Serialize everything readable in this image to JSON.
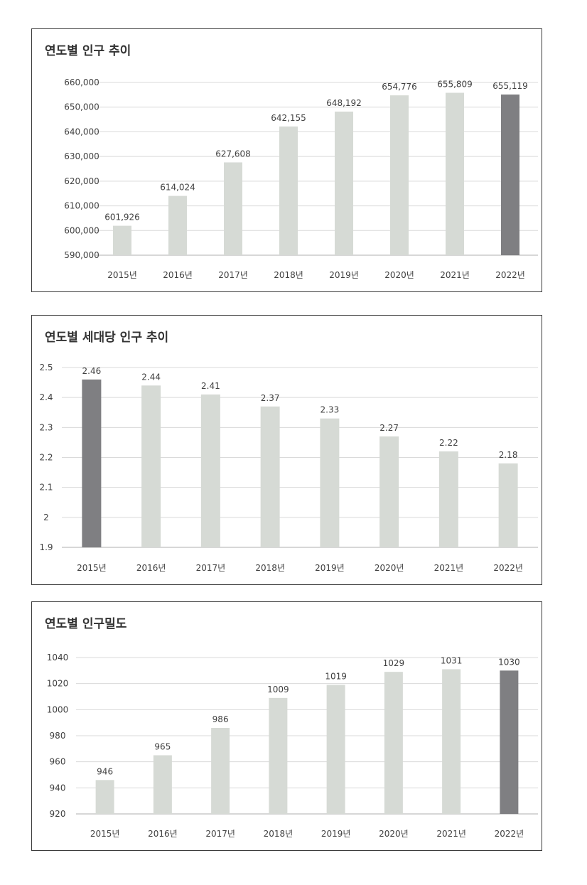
{
  "charts": [
    {
      "title": "연도별 인구 추이",
      "chart_data": {
        "type": "bar",
        "title": "연도별 인구 추이",
        "categories": [
          "2015년",
          "2016년",
          "2017년",
          "2018년",
          "2019년",
          "2020년",
          "2021년",
          "2022년"
        ],
        "values": [
          601926,
          614024,
          627608,
          642155,
          648192,
          654776,
          655809,
          655119
        ],
        "value_labels": [
          "601,926",
          "614,024",
          "627,608",
          "642,155",
          "648,192",
          "654,776",
          "655,809",
          "655,119"
        ],
        "ylim": [
          590000,
          660000
        ],
        "y_ticks": [
          590000,
          600000,
          610000,
          620000,
          630000,
          640000,
          650000,
          660000
        ],
        "y_tick_labels": [
          "590,000",
          "600,000",
          "610,000",
          "620,000",
          "630,000",
          "640,000",
          "650,000",
          "660,000"
        ],
        "highlight_index": 7,
        "grid": true,
        "xlabel": "",
        "ylabel": ""
      }
    },
    {
      "title": "연도별 세대당 인구 추이",
      "chart_data": {
        "type": "bar",
        "title": "연도별 세대당 인구 추이",
        "categories": [
          "2015년",
          "2016년",
          "2017년",
          "2018년",
          "2019년",
          "2020년",
          "2021년",
          "2022년"
        ],
        "values": [
          2.46,
          2.44,
          2.41,
          2.37,
          2.33,
          2.27,
          2.22,
          2.18
        ],
        "value_labels": [
          "2.46",
          "2.44",
          "2.41",
          "2.37",
          "2.33",
          "2.27",
          "2.22",
          "2.18"
        ],
        "ylim": [
          1.9,
          2.5
        ],
        "y_ticks": [
          1.9,
          2.0,
          2.1,
          2.2,
          2.3,
          2.4,
          2.5
        ],
        "y_tick_labels": [
          "1.9",
          "2",
          "2.1",
          "2.2",
          "2.3",
          "2.4",
          "2.5"
        ],
        "highlight_index": 0,
        "grid": true,
        "xlabel": "",
        "ylabel": ""
      }
    },
    {
      "title": "연도별 인구밀도",
      "chart_data": {
        "type": "bar",
        "title": "연도별 인구밀도",
        "categories": [
          "2015년",
          "2016년",
          "2017년",
          "2018년",
          "2019년",
          "2020년",
          "2021년",
          "2022년"
        ],
        "values": [
          946,
          965,
          986,
          1009,
          1019,
          1029,
          1031,
          1030
        ],
        "value_labels": [
          "946",
          "965",
          "986",
          "1009",
          "1019",
          "1029",
          "1031",
          "1030"
        ],
        "ylim": [
          920,
          1040
        ],
        "y_ticks": [
          920,
          940,
          960,
          980,
          1000,
          1020,
          1040
        ],
        "y_tick_labels": [
          "920",
          "940",
          "960",
          "980",
          "1000",
          "1020",
          "1040"
        ],
        "highlight_index": 7,
        "grid": true,
        "xlabel": "",
        "ylabel": ""
      }
    }
  ],
  "colors": {
    "bar": "#d6dad5",
    "highlight": "#7f7f82",
    "grid": "#d9d9d9",
    "axis": "#bfbfbf",
    "text": "#404040",
    "border": "#3a3a3a"
  }
}
